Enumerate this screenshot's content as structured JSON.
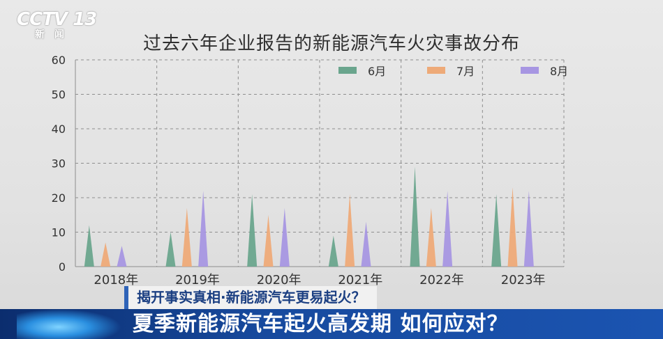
{
  "logo": {
    "main": "CCTV 13",
    "sub": "新闻"
  },
  "caption": {
    "top": "揭开事实真相·新能源汽车更易起火？",
    "main": "夏季新能源汽车起火高发期  如何应对？"
  },
  "chart_data": {
    "type": "bar",
    "title": "过去六年企业报告的新能源汽车火灾事故分布",
    "categories": [
      "2018年",
      "2019年",
      "2020年",
      "2021年",
      "2022年",
      "2023年"
    ],
    "series": [
      {
        "name": "6月",
        "color": "#6aa58d",
        "values": [
          12,
          10,
          21,
          9,
          29,
          21
        ]
      },
      {
        "name": "7月",
        "color": "#eeaa78",
        "values": [
          7,
          17,
          15,
          21,
          17,
          23
        ]
      },
      {
        "name": "8月",
        "color": "#a796e2",
        "values": [
          6,
          22,
          17,
          13,
          22,
          22
        ]
      }
    ],
    "ylim": [
      0,
      60
    ],
    "yticks": [
      0,
      10,
      20,
      30,
      40,
      50,
      60
    ],
    "grid": true,
    "legend": "top-right"
  }
}
